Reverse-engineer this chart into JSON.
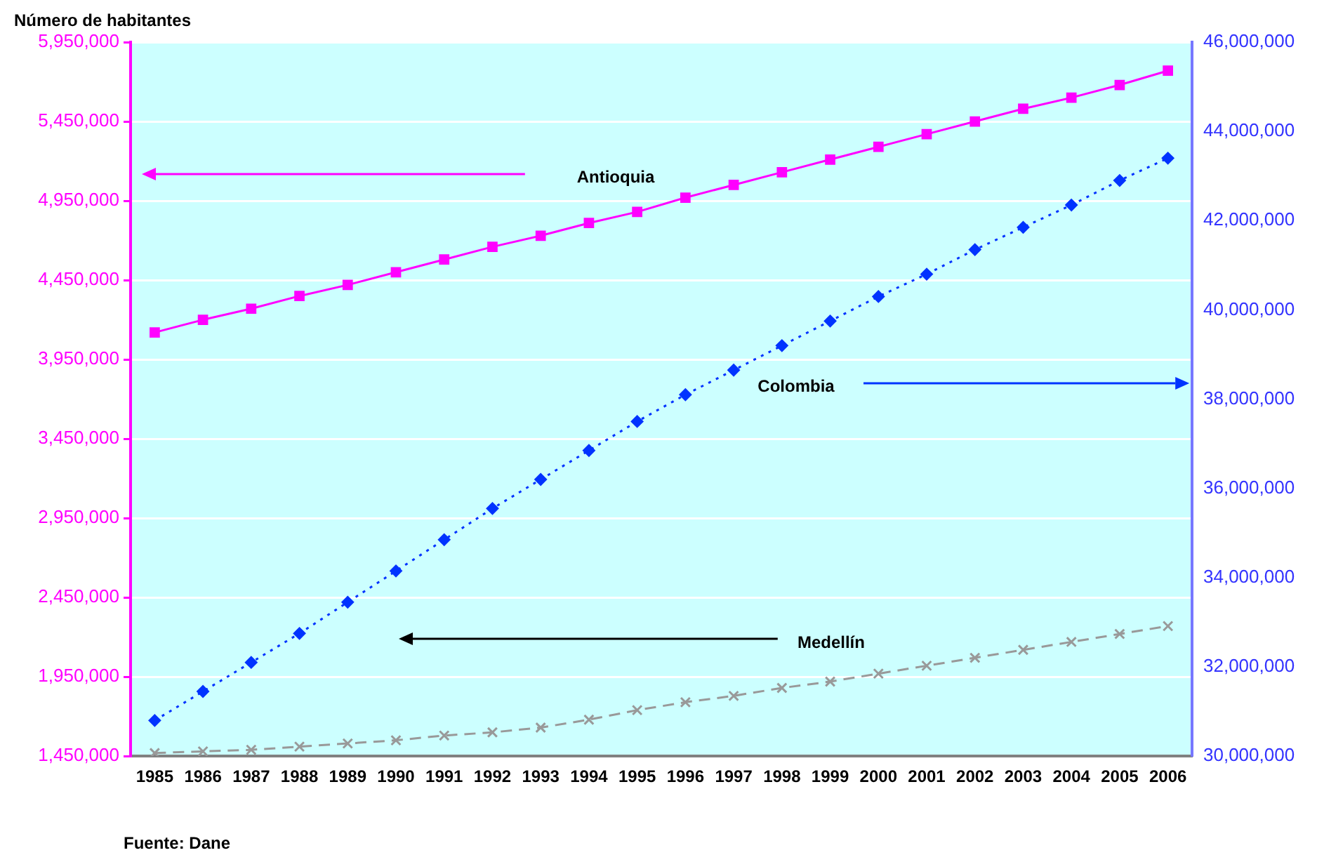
{
  "chart_data": {
    "type": "line",
    "ylabel": "Número de habitantes",
    "annotations": [
      "Fuente: Dane"
    ],
    "categories": [
      "1985",
      "1986",
      "1987",
      "1988",
      "1989",
      "1990",
      "1991",
      "1992",
      "1993",
      "1994",
      "1995",
      "1996",
      "1997",
      "1998",
      "1999",
      "2000",
      "2001",
      "2002",
      "2003",
      "2004",
      "2005",
      "2006"
    ],
    "series": [
      {
        "name": "Antioquia",
        "color": "#ff00ff",
        "marker": "square",
        "line_style": "solid",
        "values": [
          4120000,
          4200000,
          4270000,
          4350000,
          4420000,
          4500000,
          4580000,
          4660000,
          4730000,
          4810000,
          4880000,
          4970000,
          5050000,
          5130000,
          5210000,
          5290000,
          5370000,
          5450000,
          5530000,
          5600000,
          5680000,
          5770000
        ]
      },
      {
        "name": "Colombia",
        "color": "#0033ff",
        "marker": "diamond",
        "line_style": "dotted",
        "axis": "y2",
        "values": [
          30800000,
          31450000,
          32100000,
          32750000,
          33450000,
          34150000,
          34850000,
          35550000,
          36200000,
          36850000,
          37500000,
          38100000,
          38650000,
          39200000,
          39750000,
          40300000,
          40800000,
          41350000,
          41850000,
          42350000,
          42900000,
          43400000
        ]
      },
      {
        "name": "Medellín",
        "color": "#999999",
        "marker": "cross",
        "line_style": "dashed",
        "values": [
          1470000,
          1480000,
          1490000,
          1510000,
          1530000,
          1550000,
          1580000,
          1600000,
          1630000,
          1680000,
          1740000,
          1790000,
          1830000,
          1880000,
          1920000,
          1970000,
          2020000,
          2070000,
          2120000,
          2170000,
          2220000,
          2270000
        ]
      }
    ],
    "ylim": [
      1450000,
      5950000
    ],
    "yticks": [
      {
        "value": 1450000,
        "label": "1,450,000"
      },
      {
        "value": 1950000,
        "label": "1,950,000"
      },
      {
        "value": 2450000,
        "label": "2,450,000"
      },
      {
        "value": 2950000,
        "label": "2,950,000"
      },
      {
        "value": 3450000,
        "label": "3,450,000"
      },
      {
        "value": 3950000,
        "label": "3,950,000"
      },
      {
        "value": 4450000,
        "label": "4,450,000"
      },
      {
        "value": 4950000,
        "label": "4,950,000"
      },
      {
        "value": 5450000,
        "label": "5,450,000"
      },
      {
        "value": 5950000,
        "label": "5,950,000"
      }
    ],
    "y2lim": [
      30000000,
      46000000
    ],
    "y2ticks": [
      {
        "value": 30000000,
        "label": "30,000,000"
      },
      {
        "value": 32000000,
        "label": "32,000,000"
      },
      {
        "value": 34000000,
        "label": "34,000,000"
      },
      {
        "value": 36000000,
        "label": "36,000,000"
      },
      {
        "value": 38000000,
        "label": "38,000,000"
      },
      {
        "value": 40000000,
        "label": "40,000,000"
      },
      {
        "value": 42000000,
        "label": "42,000,000"
      },
      {
        "value": 44000000,
        "label": "44,000,000"
      },
      {
        "value": 46000000,
        "label": "46,000,000"
      }
    ],
    "grid": "y",
    "legend": false
  }
}
